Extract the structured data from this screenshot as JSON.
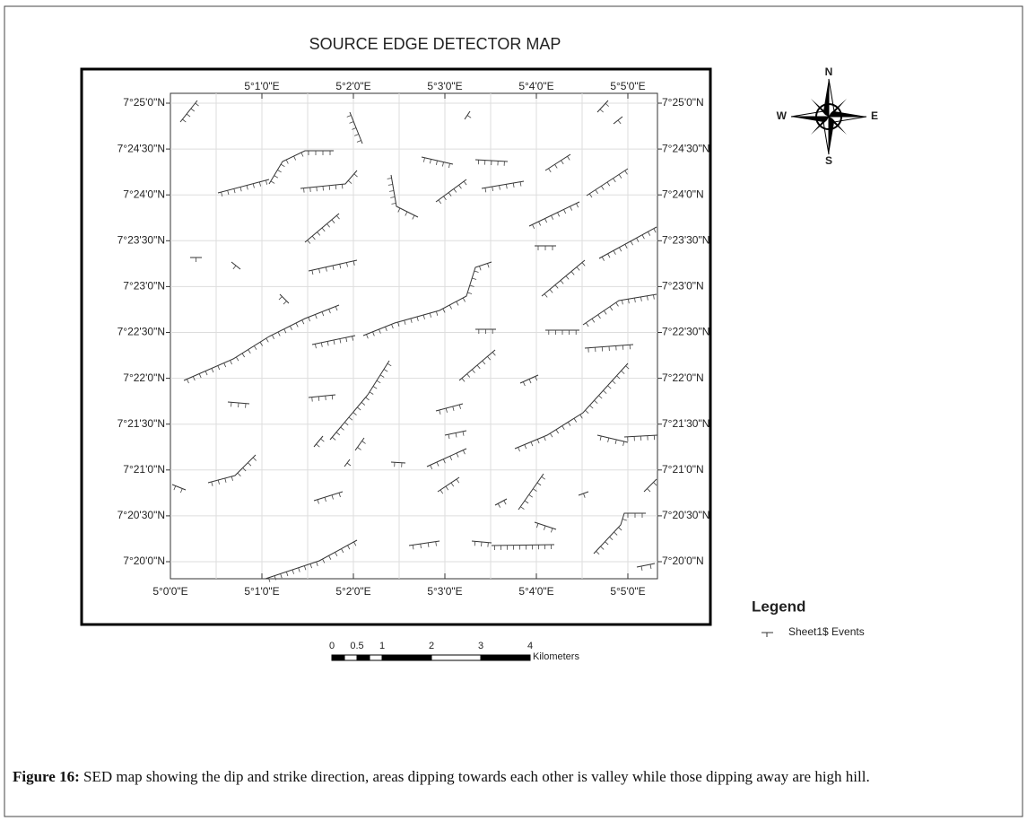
{
  "title": "SOURCE EDGE DETECTOR MAP",
  "map": {
    "top_labels": [
      "5°1'0\"E",
      "5°2'0\"E",
      "5°3'0\"E",
      "5°4'0\"E",
      "5°5'0\"E"
    ],
    "bottom_labels": [
      "5°0'0\"E",
      "5°1'0\"E",
      "5°2'0\"E",
      "5°3'0\"E",
      "5°4'0\"E",
      "5°5'0\"E"
    ],
    "left_labels": [
      "7°25'0\"N",
      "7°24'30\"N",
      "7°24'0\"N",
      "7°23'30\"N",
      "7°23'0\"N",
      "7°22'30\"N",
      "7°22'0\"N",
      "7°21'30\"N",
      "7°21'0\"N",
      "7°20'30\"N",
      "7°20'0\"N"
    ],
    "right_labels": [
      "7°25'0\"N",
      "7°24'30\"N",
      "7°24'0\"N",
      "7°23'30\"N",
      "7°23'0\"N",
      "7°22'30\"N",
      "7°22'0\"N",
      "7°21'30\"N",
      "7°21'0\"N",
      "7°20'30\"N",
      "7°20'0\"N"
    ]
  },
  "compass": {
    "n": "N",
    "s": "S",
    "e": "E",
    "w": "W"
  },
  "legend": {
    "title": "Legend",
    "entry": "Sheet1$ Events"
  },
  "scale_bar": {
    "labels": [
      "0",
      "0.5",
      "1",
      "2",
      "3",
      "4"
    ],
    "unit": "Kilometers"
  },
  "caption": {
    "label": "Figure 16:",
    "text": " SED map showing the dip and strike direction, areas dipping towards each other is valley while those dipping away are high hill."
  }
}
